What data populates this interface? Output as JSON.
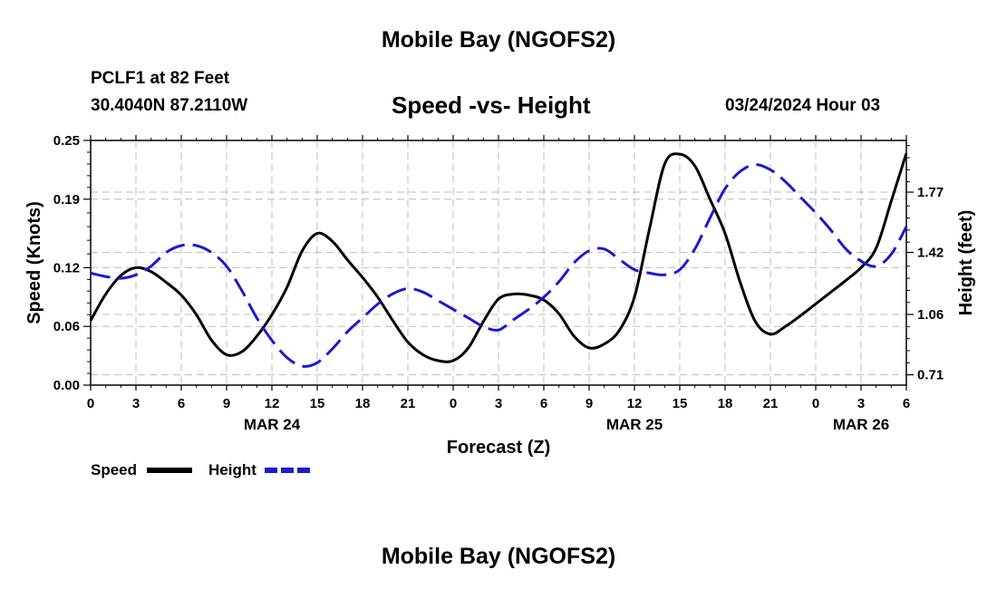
{
  "header": {
    "title": "Mobile Bay (NGOFS2)",
    "station": "PCLF1 at 82 Feet",
    "coords": "30.4040N  87.2110W",
    "datetime": "03/24/2024 Hour 03"
  },
  "footer": {
    "title": "Mobile Bay (NGOFS2)"
  },
  "chart_data": {
    "type": "line",
    "title": "Speed -vs- Height",
    "xlabel": "Forecast (Z)",
    "ylabel": "Speed (Knots)",
    "y2label": "Height (feet)",
    "x_range_hours": [
      0,
      54
    ],
    "xticks": [
      {
        "hour": 0,
        "label": "0"
      },
      {
        "hour": 3,
        "label": "3"
      },
      {
        "hour": 6,
        "label": "6"
      },
      {
        "hour": 9,
        "label": "9"
      },
      {
        "hour": 12,
        "label": "12"
      },
      {
        "hour": 15,
        "label": "15"
      },
      {
        "hour": 18,
        "label": "18"
      },
      {
        "hour": 21,
        "label": "21"
      },
      {
        "hour": 24,
        "label": "0"
      },
      {
        "hour": 27,
        "label": "3"
      },
      {
        "hour": 30,
        "label": "6"
      },
      {
        "hour": 33,
        "label": "9"
      },
      {
        "hour": 36,
        "label": "12"
      },
      {
        "hour": 39,
        "label": "15"
      },
      {
        "hour": 42,
        "label": "18"
      },
      {
        "hour": 45,
        "label": "21"
      },
      {
        "hour": 48,
        "label": "0"
      },
      {
        "hour": 51,
        "label": "3"
      },
      {
        "hour": 54,
        "label": "6"
      }
    ],
    "date_labels": [
      {
        "hour": 12,
        "label": "MAR 24"
      },
      {
        "hour": 36,
        "label": "MAR 25"
      },
      {
        "hour": 51,
        "label": "MAR 26"
      }
    ],
    "yticks": [
      0.0,
      0.06,
      0.12,
      0.19,
      0.25
    ],
    "yticks_labels": [
      "0.00",
      "0.06",
      "0.12",
      "0.19",
      "0.25"
    ],
    "ylim": [
      0,
      0.25
    ],
    "y2ticks": [
      0.71,
      1.06,
      1.42,
      1.77
    ],
    "y2ticks_labels": [
      "0.71",
      "1.06",
      "1.42",
      "1.77"
    ],
    "y2lim": [
      0.65,
      2.07
    ],
    "grid": true,
    "legend_position": "bottom-left",
    "series": [
      {
        "name": "Speed",
        "axis": "left",
        "color": "#000000",
        "style": "solid",
        "points": [
          [
            0,
            0.066
          ],
          [
            1,
            0.093
          ],
          [
            2,
            0.112
          ],
          [
            3,
            0.12
          ],
          [
            4,
            0.116
          ],
          [
            5,
            0.105
          ],
          [
            6,
            0.092
          ],
          [
            7,
            0.072
          ],
          [
            8,
            0.046
          ],
          [
            9,
            0.031
          ],
          [
            10,
            0.034
          ],
          [
            11,
            0.05
          ],
          [
            12,
            0.072
          ],
          [
            13,
            0.1
          ],
          [
            14,
            0.137
          ],
          [
            15,
            0.155
          ],
          [
            16,
            0.147
          ],
          [
            17,
            0.128
          ],
          [
            18,
            0.11
          ],
          [
            19,
            0.09
          ],
          [
            20,
            0.066
          ],
          [
            21,
            0.044
          ],
          [
            22,
            0.031
          ],
          [
            23,
            0.025
          ],
          [
            24,
            0.025
          ],
          [
            25,
            0.038
          ],
          [
            26,
            0.065
          ],
          [
            27,
            0.088
          ],
          [
            28,
            0.093
          ],
          [
            29,
            0.092
          ],
          [
            30,
            0.087
          ],
          [
            31,
            0.073
          ],
          [
            32,
            0.05
          ],
          [
            33,
            0.038
          ],
          [
            34,
            0.042
          ],
          [
            35,
            0.056
          ],
          [
            36,
            0.09
          ],
          [
            37,
            0.16
          ],
          [
            38,
            0.226
          ],
          [
            39,
            0.236
          ],
          [
            40,
            0.224
          ],
          [
            41,
            0.19
          ],
          [
            42,
            0.155
          ],
          [
            43,
            0.105
          ],
          [
            44,
            0.065
          ],
          [
            45,
            0.052
          ],
          [
            46,
            0.06
          ],
          [
            47,
            0.071
          ],
          [
            48,
            0.083
          ],
          [
            49,
            0.095
          ],
          [
            50,
            0.107
          ],
          [
            51,
            0.12
          ],
          [
            52,
            0.14
          ],
          [
            53,
            0.188
          ],
          [
            54,
            0.237
          ]
        ]
      },
      {
        "name": "Height",
        "axis": "right",
        "color": "#1a1ad0",
        "style": "dashed",
        "points": [
          [
            0,
            1.3
          ],
          [
            1,
            1.28
          ],
          [
            2,
            1.27
          ],
          [
            3,
            1.29
          ],
          [
            4,
            1.34
          ],
          [
            5,
            1.42
          ],
          [
            6,
            1.46
          ],
          [
            7,
            1.46
          ],
          [
            8,
            1.42
          ],
          [
            9,
            1.34
          ],
          [
            10,
            1.2
          ],
          [
            11,
            1.04
          ],
          [
            12,
            0.91
          ],
          [
            13,
            0.81
          ],
          [
            14,
            0.76
          ],
          [
            15,
            0.78
          ],
          [
            16,
            0.86
          ],
          [
            17,
            0.96
          ],
          [
            18,
            1.04
          ],
          [
            19,
            1.12
          ],
          [
            20,
            1.18
          ],
          [
            21,
            1.21
          ],
          [
            22,
            1.19
          ],
          [
            23,
            1.14
          ],
          [
            24,
            1.09
          ],
          [
            25,
            1.04
          ],
          [
            26,
            0.99
          ],
          [
            27,
            0.97
          ],
          [
            28,
            1.03
          ],
          [
            29,
            1.09
          ],
          [
            30,
            1.16
          ],
          [
            31,
            1.25
          ],
          [
            32,
            1.36
          ],
          [
            33,
            1.43
          ],
          [
            34,
            1.44
          ],
          [
            35,
            1.38
          ],
          [
            36,
            1.32
          ],
          [
            37,
            1.3
          ],
          [
            38,
            1.29
          ],
          [
            39,
            1.32
          ],
          [
            40,
            1.44
          ],
          [
            41,
            1.62
          ],
          [
            42,
            1.79
          ],
          [
            43,
            1.89
          ],
          [
            44,
            1.93
          ],
          [
            45,
            1.9
          ],
          [
            46,
            1.83
          ],
          [
            47,
            1.74
          ],
          [
            48,
            1.65
          ],
          [
            49,
            1.55
          ],
          [
            50,
            1.44
          ],
          [
            51,
            1.37
          ],
          [
            52,
            1.34
          ],
          [
            53,
            1.41
          ],
          [
            54,
            1.57
          ]
        ]
      }
    ]
  }
}
